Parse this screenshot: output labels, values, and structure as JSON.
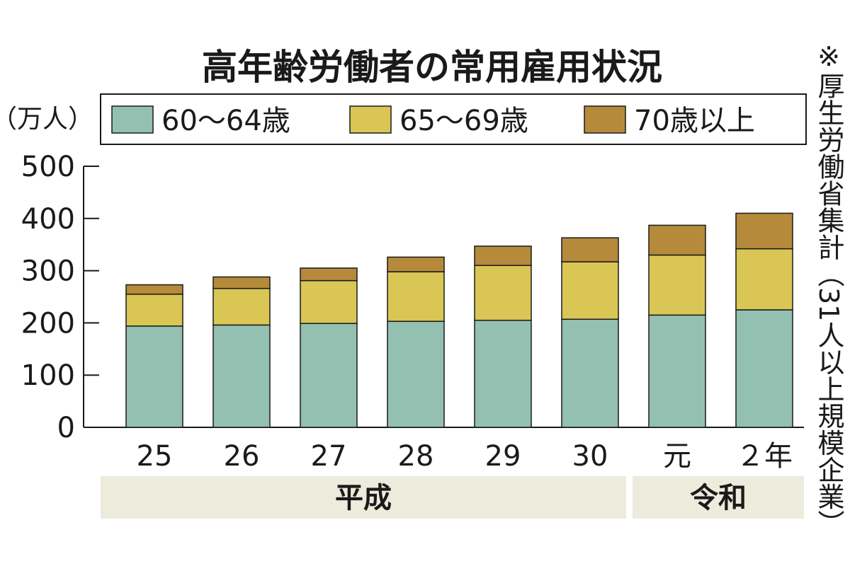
{
  "chart_data": {
    "type": "bar",
    "stacked": true,
    "title": "高年齢労働者の常用雇用状況",
    "ylabel": "（万人）",
    "ylim": [
      0,
      500
    ],
    "yticks": [
      0,
      100,
      200,
      300,
      400,
      500
    ],
    "categories": [
      "25",
      "26",
      "27",
      "28",
      "29",
      "30",
      "元",
      "２年"
    ],
    "era_groups": [
      {
        "label": "平成",
        "categories": [
          "25",
          "26",
          "27",
          "28",
          "29",
          "30"
        ]
      },
      {
        "label": "令和",
        "categories": [
          "元",
          "２年"
        ]
      }
    ],
    "legend_position": "top",
    "grid": false,
    "series": [
      {
        "name": "60〜64歳",
        "color": "#93c0b0",
        "values": [
          194,
          196,
          199,
          203,
          205,
          207,
          215,
          225
        ]
      },
      {
        "name": "65〜69歳",
        "color": "#d9c655",
        "values": [
          61,
          70,
          82,
          95,
          105,
          110,
          115,
          117
        ]
      },
      {
        "name": "70歳以上",
        "color": "#b58a3a",
        "values": [
          18,
          22,
          24,
          28,
          37,
          46,
          57,
          68
        ]
      }
    ],
    "note": "※厚生労働省集計（31人以上規模企業）"
  }
}
